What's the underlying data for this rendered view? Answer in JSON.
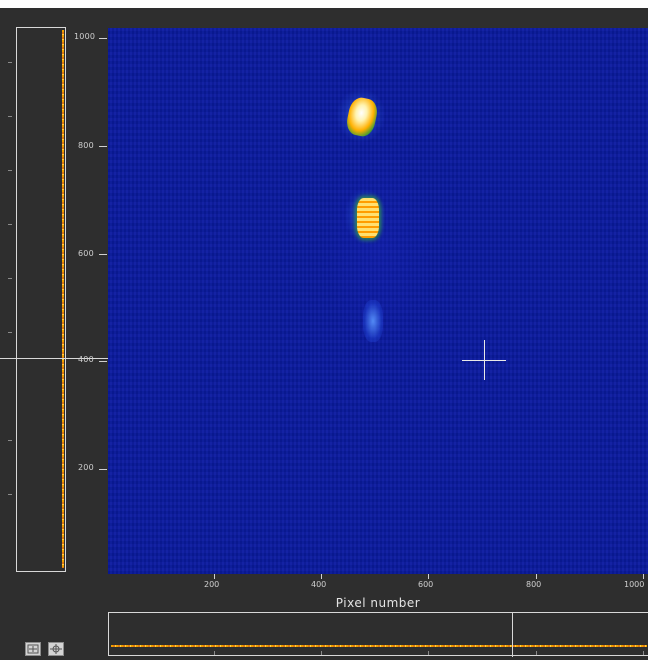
{
  "heatmap": {
    "xlabel": "Pixel number",
    "x_ticks": [
      "200",
      "400",
      "600",
      "800",
      "1000"
    ],
    "y_ticks": [
      "1000",
      "800",
      "600",
      "400",
      "200"
    ],
    "colormap_colors": {
      "background": "#0a1aa0",
      "low": "#1a35d0",
      "mid": "#f0a000",
      "high": "#ffffff"
    }
  },
  "profiles": {
    "trace_color": "#f0a000",
    "border_color": "#d8d8d8"
  },
  "toolbar": {
    "buttons": [
      {
        "icon": "zoom-fit-icon"
      },
      {
        "icon": "crosshair-icon"
      }
    ]
  }
}
